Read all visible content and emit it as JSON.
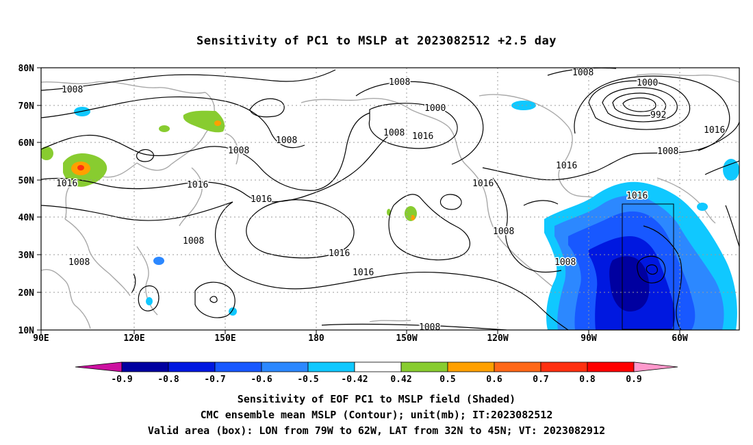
{
  "title": "Sensitivity of PC1 to MSLP at 2023082512 +2.5 day",
  "map": {
    "lon_ticks": [
      "90E",
      "120E",
      "150E",
      "180",
      "150W",
      "120W",
      "90W",
      "60W"
    ],
    "lat_ticks": [
      "80N",
      "70N",
      "60N",
      "50N",
      "40N",
      "30N",
      "20N",
      "10N"
    ],
    "contour_labels": [
      {
        "text": "1008"
      },
      {
        "text": "1008"
      },
      {
        "text": "1000"
      },
      {
        "text": "1008"
      },
      {
        "text": "1016"
      },
      {
        "text": "1008"
      },
      {
        "text": "1008"
      },
      {
        "text": "1016"
      },
      {
        "text": "1016"
      },
      {
        "text": "1008"
      },
      {
        "text": "1008"
      },
      {
        "text": "1016"
      },
      {
        "text": "1016"
      },
      {
        "text": "1016"
      },
      {
        "text": "1008"
      },
      {
        "text": "1008"
      },
      {
        "text": "1000"
      },
      {
        "text": "992"
      },
      {
        "text": "1008"
      },
      {
        "text": "1016"
      },
      {
        "text": "1016"
      },
      {
        "text": "1016"
      },
      {
        "text": "1008"
      },
      {
        "text": "1008"
      }
    ],
    "valid_box": {
      "lon_from": "79W",
      "lon_to": "62W",
      "lat_from": "32N",
      "lat_to": "45N"
    }
  },
  "colorbar": {
    "labels": [
      "-0.9",
      "-0.8",
      "-0.7",
      "-0.6",
      "-0.5",
      "-0.42",
      "0.42",
      "0.5",
      "0.6",
      "0.7",
      "0.8",
      "0.9"
    ],
    "colors": [
      "#0000a0",
      "#0018e0",
      "#1858ff",
      "#2c88ff",
      "#10c8ff",
      "#ffffff",
      "#88cc30",
      "#ffa000",
      "#ff6818",
      "#ff3010",
      "#ff0000"
    ],
    "low_end_color": "#cc10a0",
    "high_end_color": "#ff99cc"
  },
  "footer": {
    "line1": "Sensitivity of EOF PC1 to MSLP field (Shaded)",
    "line2": "CMC ensemble mean MSLP (Contour); unit(mb); IT:2023082512",
    "line3": "Valid area (box): LON from 79W to 62W, LAT from 32N to 45N; VT: 2023082912"
  }
}
